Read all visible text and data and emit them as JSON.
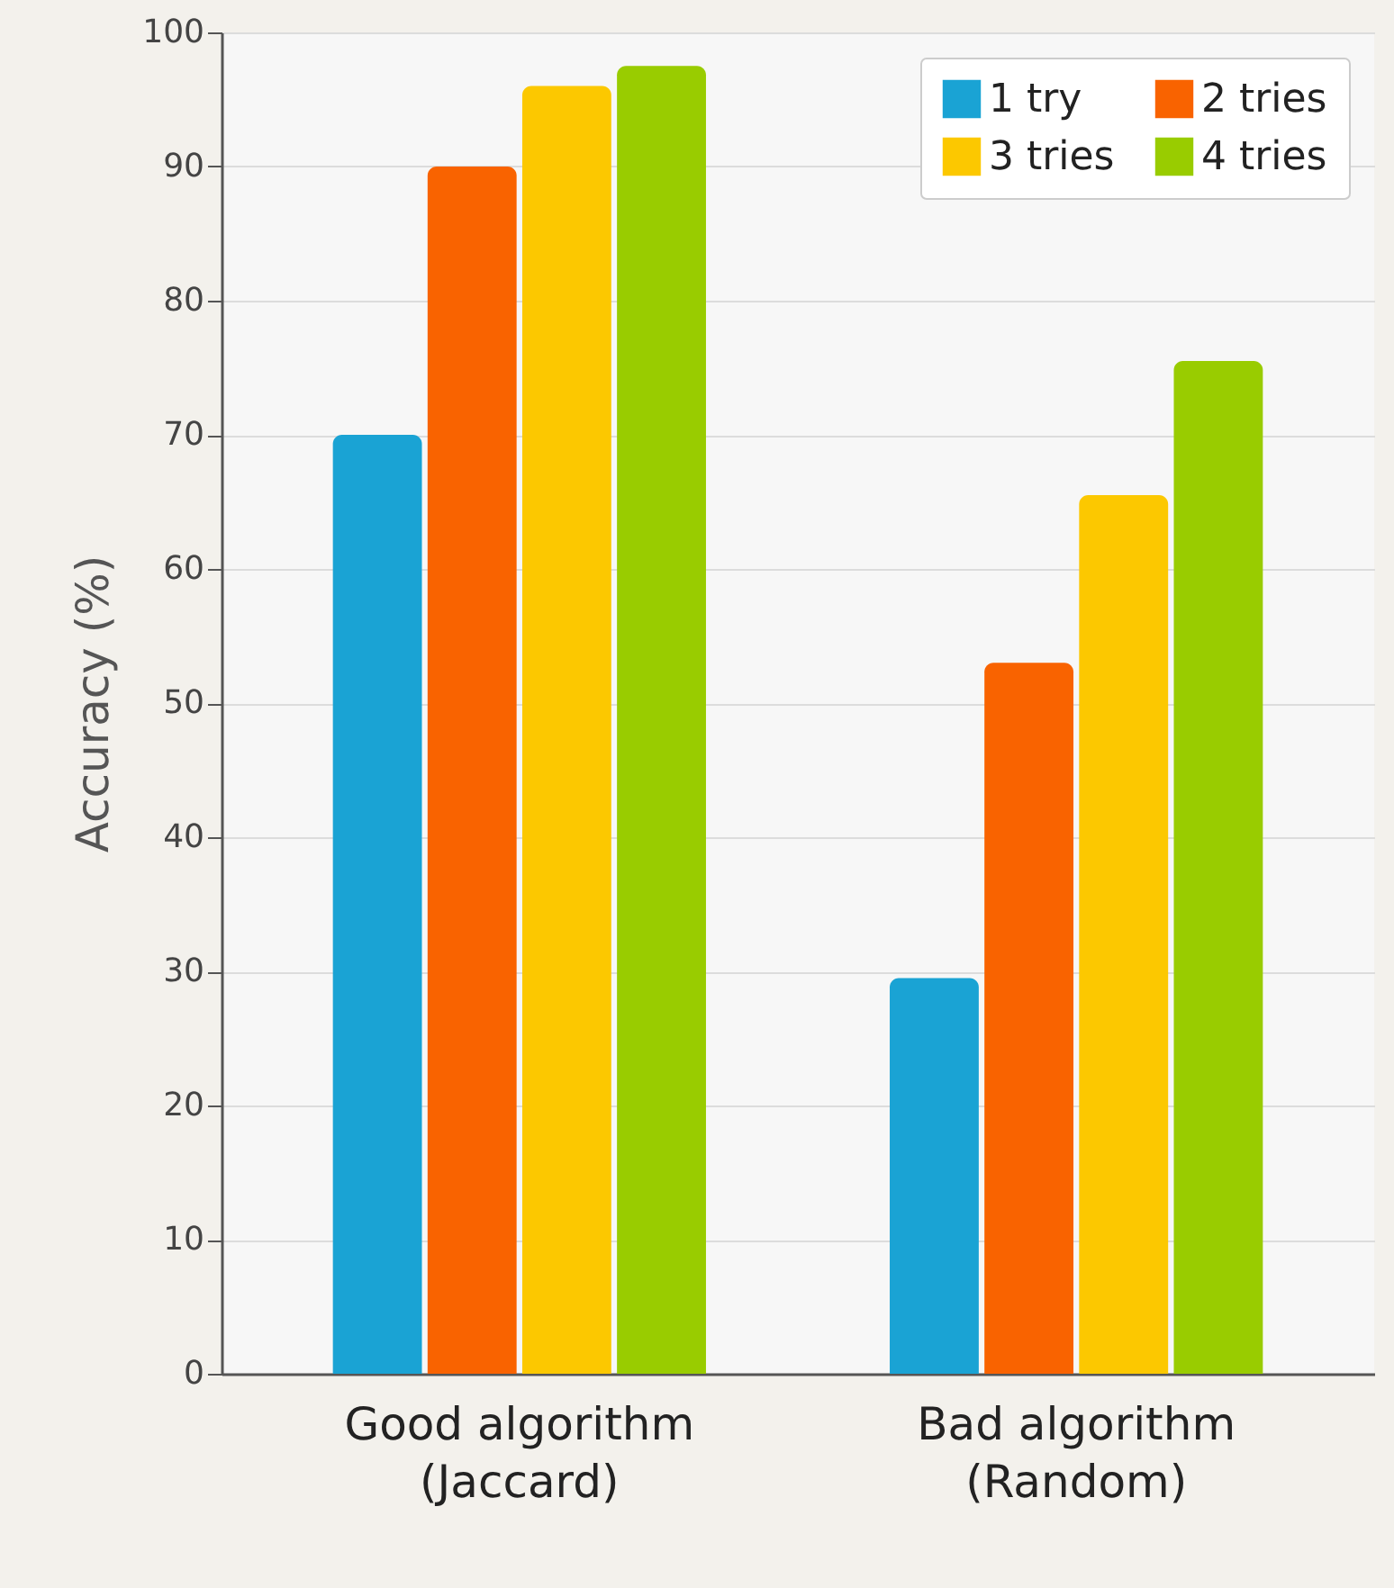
{
  "chart_data": {
    "type": "bar",
    "ylabel": "Accuracy (%)",
    "categories": [
      "Good algorithm\n(Jaccard)",
      "Bad algorithm\n(Random)"
    ],
    "series": [
      {
        "name": "1 try",
        "color": "#1aa3d4",
        "values": [
          70,
          29.5
        ]
      },
      {
        "name": "2 tries",
        "color": "#f96300",
        "values": [
          90,
          53
        ]
      },
      {
        "name": "3 tries",
        "color": "#fcc800",
        "values": [
          96,
          65.5
        ]
      },
      {
        "name": "4 tries",
        "color": "#99cc00",
        "values": [
          97.5,
          75.5
        ]
      }
    ],
    "ylim": [
      0,
      100
    ],
    "yticks": [
      0,
      10,
      20,
      30,
      40,
      50,
      60,
      70,
      80,
      90,
      100
    ],
    "grid": "y",
    "legend": "top right"
  }
}
